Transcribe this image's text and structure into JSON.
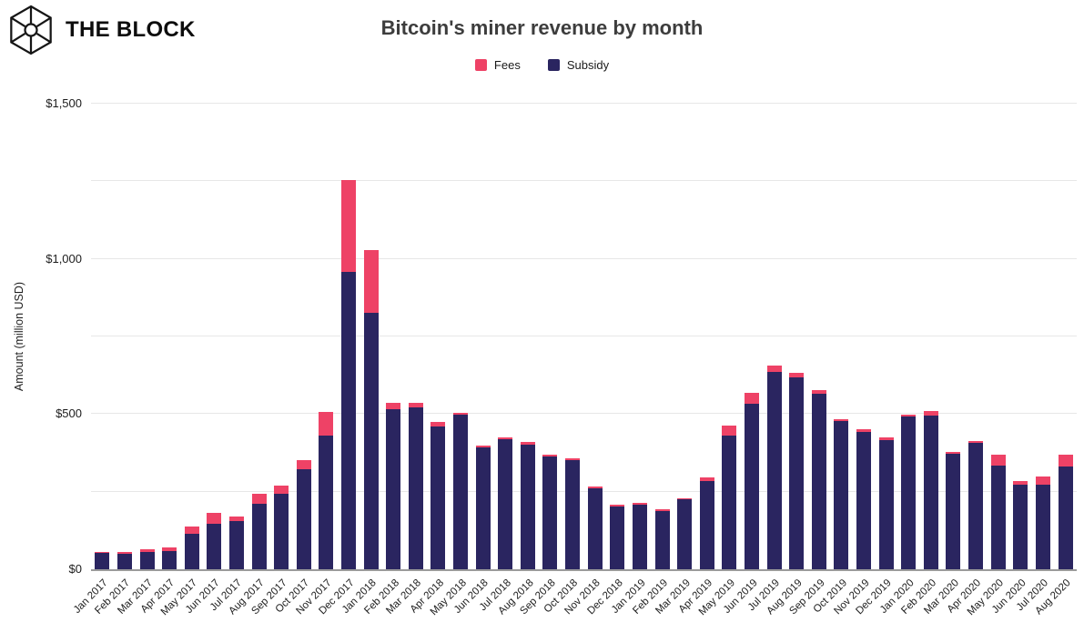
{
  "brand": {
    "name": "THE BLOCK",
    "logo_icon": "block-cube-logo"
  },
  "chart_data": {
    "type": "bar",
    "stacked": true,
    "title": "Bitcoin's miner revenue by month",
    "ylabel": "Amount (million USD)",
    "ylim": [
      0,
      1500
    ],
    "grid": true,
    "gridline_values": [
      250,
      500,
      750,
      1000,
      1250,
      1500
    ],
    "yticks": [
      {
        "value": 0,
        "label": "$0"
      },
      {
        "value": 500,
        "label": "$500"
      },
      {
        "value": 1000,
        "label": "$1,000"
      },
      {
        "value": 1500,
        "label": "$1,500"
      }
    ],
    "legend_position": "top-center",
    "categories": [
      "Jan 2017",
      "Feb 2017",
      "Mar 2017",
      "Apr 2017",
      "May 2017",
      "Jun 2017",
      "Jul 2017",
      "Aug 2017",
      "Sep 2017",
      "Oct 2017",
      "Nov 2017",
      "Dec 2017",
      "Jan 2018",
      "Feb 2018",
      "Mar 2018",
      "Apr 2018",
      "May 2018",
      "Jun 2018",
      "Jul 2018",
      "Aug 2018",
      "Sep 2018",
      "Oct 2018",
      "Nov 2018",
      "Dec 2018",
      "Jan 2019",
      "Feb 2019",
      "Mar 2019",
      "Apr 2019",
      "May 2019",
      "Jun 2019",
      "Jul 2019",
      "Aug 2019",
      "Sep 2019",
      "Oct 2019",
      "Nov 2019",
      "Dec 2019",
      "Jan 2020",
      "Feb 2020",
      "Mar 2020",
      "Apr 2020",
      "May 2020",
      "Jun 2020",
      "Jul 2020",
      "Aug 2020"
    ],
    "series": [
      {
        "name": "Fees",
        "color": "#EE4266",
        "values": [
          3,
          7,
          9,
          11,
          22,
          34,
          15,
          34,
          25,
          32,
          77,
          295,
          203,
          22,
          13,
          13,
          7,
          6,
          6,
          8,
          5,
          5,
          5,
          5,
          6,
          5,
          5,
          11,
          34,
          34,
          22,
          16,
          10,
          7,
          10,
          8,
          7,
          14,
          8,
          7,
          33,
          12,
          26,
          38
        ]
      },
      {
        "name": "Subsidy",
        "color": "#2A2560",
        "values": [
          52,
          50,
          56,
          59,
          115,
          147,
          154,
          210,
          244,
          321,
          431,
          958,
          825,
          515,
          522,
          461,
          498,
          393,
          418,
          401,
          364,
          352,
          261,
          203,
          207,
          188,
          225,
          284,
          430,
          534,
          635,
          617,
          566,
          477,
          441,
          417,
          491,
          496,
          371,
          406,
          335,
          272,
          272,
          330
        ]
      }
    ],
    "colors": {
      "fees": "#EE4266",
      "subsidy": "#2A2560",
      "gridline": "#e7e7e7",
      "axis_line": "#9b9b9b"
    }
  }
}
